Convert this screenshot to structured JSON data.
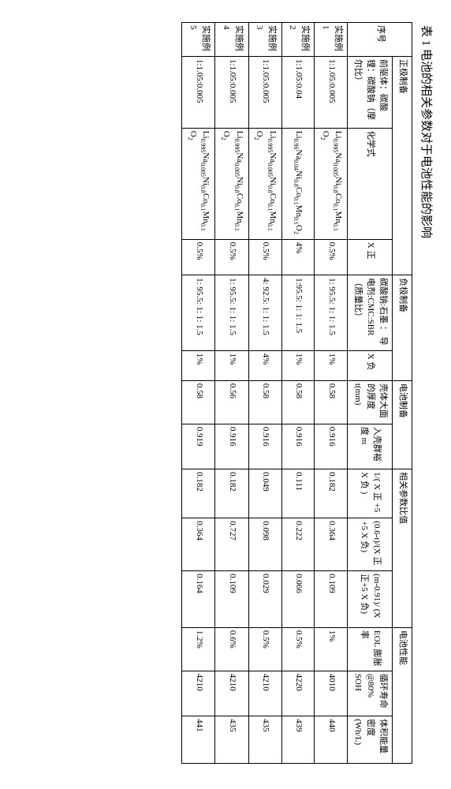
{
  "caption": "表 1 电池的相关参数对于电池性能的影响",
  "groupHeaders": {
    "seq": "序号",
    "positive": "正极制备",
    "negative": "负极制备",
    "prep": "电池制备",
    "params": "相关参数比值",
    "perf": "电池性能"
  },
  "subHeaders": {
    "pos1": "前驱体：碳酸锂：碳酸钠（摩尔比）",
    "pos2": "化学式",
    "pos3": "X 正",
    "neg1": "碳酸钠:石墨 ： 导 电剂:CMC:SBR（质量比）",
    "neg2": "X 负",
    "prep1": "壳体大面的厚度 t(mm)",
    "prep2": "入壳群裕度 m",
    "par1": "1/( X 正 +5 X 负 )",
    "par2": "(0.6-t)/(X 正+5 X 负)",
    "par3": "(m-0.91)/ (X 正+5 X 负)",
    "pf1": "EOL 膨胀率",
    "pf2": "循环寿命 @80% SOH",
    "pf3": "体积能量密度 (Wh/L)"
  },
  "rows": [
    {
      "seq": "实施例 1",
      "pos1": "1:1.05:0.005",
      "pos2": "Li0.995Na0.005Ni0.8Co0.1Mn0.1O2",
      "pos3": "0.5%",
      "neg1": "1: 95.5: 1: 1: 1.5",
      "neg2": "1%",
      "prep1": "0.58",
      "prep2": "0.916",
      "par1": "0.182",
      "par2": "0.364",
      "par3": "0.109",
      "pf1": "1%",
      "pf2": "4010",
      "pf3": "440"
    },
    {
      "seq": "实施例 2",
      "pos1": "1:1.05:0.04",
      "pos2": "Li0.96Na0.04Ni0.8Co0.1Mn0.1O2",
      "pos3": "4%",
      "neg1": "1:95.5: 1: 1: 1.5",
      "neg2": "1%",
      "prep1": "0.58",
      "prep2": "0.916",
      "par1": "0.111",
      "par2": "0.222",
      "par3": "0.066",
      "pf1": "0.5%",
      "pf2": "4220",
      "pf3": "439"
    },
    {
      "seq": "实施例 3",
      "pos1": "1:1.05:0.005",
      "pos2": "Li0.995Na0.005Ni0.8Co0.1Mn0.1O2",
      "pos3": "0.5%",
      "neg1": "4: 92.5: 1: 1: 1.5",
      "neg2": "4%",
      "prep1": "0.58",
      "prep2": "0.916",
      "par1": "0.049",
      "par2": "0.098",
      "par3": "0.029",
      "pf1": "0.5%",
      "pf2": "4210",
      "pf3": "435"
    },
    {
      "seq": "实施例 4",
      "pos1": "1:1.05:0.005",
      "pos2": "Li0.995Na0.005Ni0.8Co0.1Mn0.1O2",
      "pos3": "0.5%",
      "neg1": "1: 95.5: 1: 1: 1.5",
      "neg2": "1%",
      "prep1": "0.56",
      "prep2": "0.916",
      "par1": "0.182",
      "par2": "0.727",
      "par3": "0.109",
      "pf1": "0.6%",
      "pf2": "4210",
      "pf3": "435"
    },
    {
      "seq": "实施例 5",
      "pos1": "1:1.05:0.005",
      "pos2": "Li0.995Na0.005Ni0.8Co0.1Mn0.1O2",
      "pos3": "0.5%",
      "neg1": "1: 95.5: 1: 1: 1.5",
      "neg2": "1%",
      "prep1": "0.58",
      "prep2": "0.919",
      "par1": "0.182",
      "par2": "0.364",
      "par3": "0.164",
      "pf1": "1.2%",
      "pf2": "4210",
      "pf3": "441"
    }
  ]
}
